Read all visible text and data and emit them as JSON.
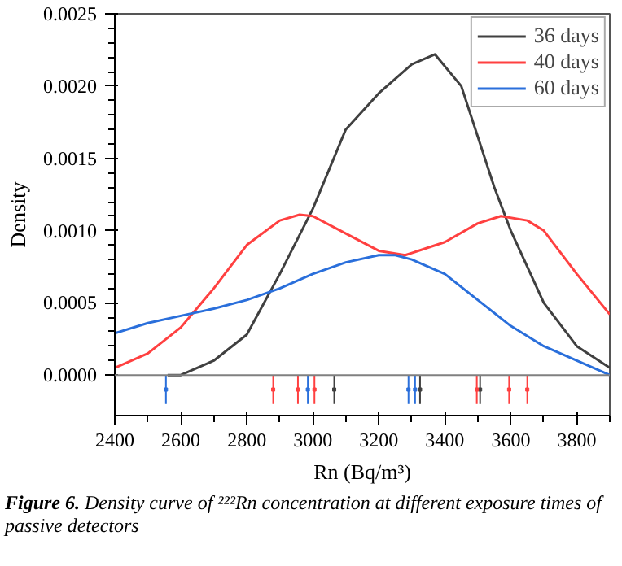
{
  "chart_data": {
    "type": "line",
    "xlabel": "Rn (Bq/m³)",
    "ylabel": "Density",
    "annotations": [
      "Figure 6.",
      "Density curve of ²²²Rn concentration at different exposure times of passive detectors"
    ],
    "xlim": [
      2400,
      3900
    ],
    "xticks": [
      2400,
      2600,
      2800,
      3000,
      3200,
      3400,
      3600,
      3800
    ],
    "ylim": [
      -0.00028,
      0.0025
    ],
    "yticks": [
      {
        "value": 0,
        "label": "0.0000"
      },
      {
        "value": 0.0005,
        "label": "0.0005"
      },
      {
        "value": 0.001,
        "label": "0.0010"
      },
      {
        "value": 0.0015,
        "label": "0.0015"
      },
      {
        "value": 0.002,
        "label": "0.0020"
      },
      {
        "value": 0.0025,
        "label": "0.0025"
      }
    ],
    "grid": false,
    "legend": "top right",
    "marker": "none",
    "ref_lines": [
      {
        "axis": "y",
        "value": 0,
        "color": "#808080"
      }
    ],
    "series": [
      {
        "name": "36 days",
        "color": "#404040",
        "x": [
          2560,
          2600,
          2700,
          2800,
          2900,
          3000,
          3100,
          3200,
          3300,
          3370,
          3450,
          3550,
          3600,
          3700,
          3800,
          3900
        ],
        "values": [
          0,
          0,
          0.0001,
          0.00028,
          0.0007,
          0.00115,
          0.0017,
          0.00195,
          0.00215,
          0.00222,
          0.002,
          0.0013,
          0.001,
          0.0005,
          0.0002,
          5e-05
        ]
      },
      {
        "name": "40 days",
        "color": "#ff4040",
        "x": [
          2400,
          2500,
          2600,
          2700,
          2800,
          2900,
          2960,
          3000,
          3100,
          3200,
          3280,
          3400,
          3500,
          3570,
          3650,
          3700,
          3800,
          3900
        ],
        "values": [
          5e-05,
          0.00015,
          0.00033,
          0.0006,
          0.0009,
          0.00107,
          0.00111,
          0.0011,
          0.00098,
          0.00086,
          0.00083,
          0.00092,
          0.00105,
          0.0011,
          0.00107,
          0.001,
          0.0007,
          0.00042
        ]
      },
      {
        "name": "60 days",
        "color": "#2a6fdb",
        "x": [
          2400,
          2500,
          2600,
          2700,
          2800,
          2900,
          3000,
          3100,
          3200,
          3250,
          3300,
          3400,
          3500,
          3600,
          3700,
          3800,
          3900
        ],
        "values": [
          0.00029,
          0.00036,
          0.00041,
          0.00046,
          0.00052,
          0.0006,
          0.0007,
          0.00078,
          0.00083,
          0.00083,
          0.0008,
          0.0007,
          0.00052,
          0.00034,
          0.0002,
          0.0001,
          0
        ]
      },
      {
        "type": "scatter",
        "marker": "square",
        "color": "#404040",
        "x": [
          3065,
          3325,
          3507
        ],
        "values": [
          -0.0001,
          -0.0001,
          -0.0001
        ],
        "errors": [
          0.0001,
          0.0001,
          0.0001
        ]
      },
      {
        "type": "scatter",
        "marker": "square",
        "color": "#ff4040",
        "x": [
          2880,
          2955,
          3005,
          3497,
          3595,
          3650
        ],
        "values": [
          -0.0001,
          -0.0001,
          -0.0001,
          -0.0001,
          -0.0001,
          -0.0001
        ],
        "errors": [
          0.0001,
          0.0001,
          0.0001,
          0.0001,
          0.0001,
          0.0001
        ]
      },
      {
        "type": "scatter",
        "marker": "square",
        "color": "#2a6fdb",
        "x": [
          2555,
          2985,
          3290,
          3310
        ],
        "values": [
          -0.0001,
          -0.0001,
          -0.0001,
          -0.0001
        ],
        "errors": [
          0.0001,
          0.0001,
          0.0001,
          0.0001
        ]
      }
    ]
  }
}
